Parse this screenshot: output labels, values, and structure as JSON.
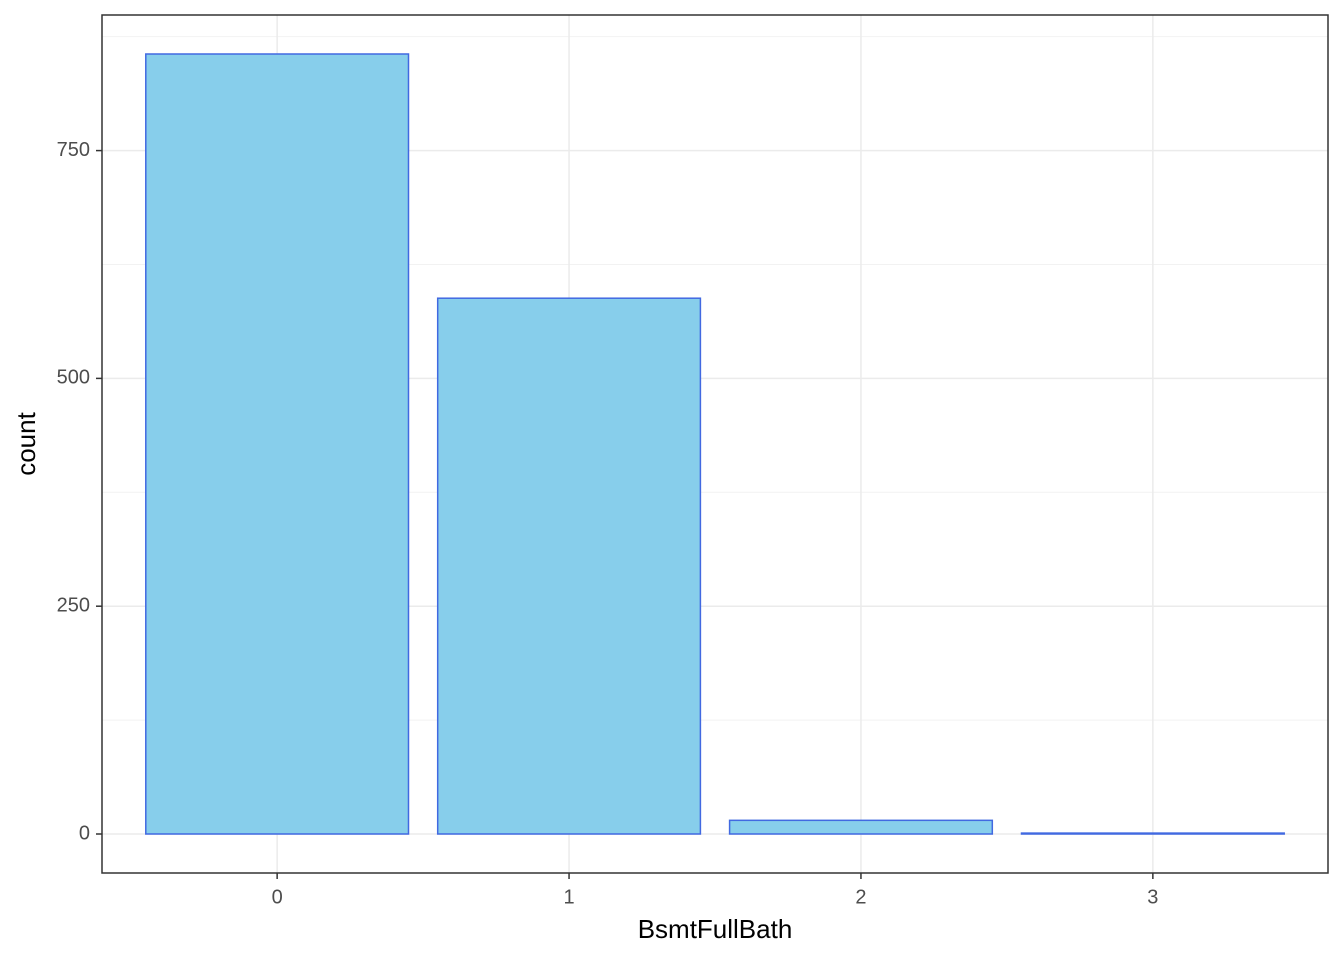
{
  "chart_data": {
    "type": "bar",
    "x_label": "BsmtFullBath",
    "y_label": "count",
    "categories": [
      "0",
      "1",
      "2",
      "3"
    ],
    "values": [
      856,
      588,
      15,
      1
    ],
    "color": "#87ceeb",
    "edge_color": "#4169e1",
    "ylim": [
      -42.8,
      898.8
    ],
    "yticks": [
      0,
      250,
      500,
      750
    ],
    "y_minor_grid": [
      125,
      375,
      625,
      875
    ],
    "grid": true
  }
}
